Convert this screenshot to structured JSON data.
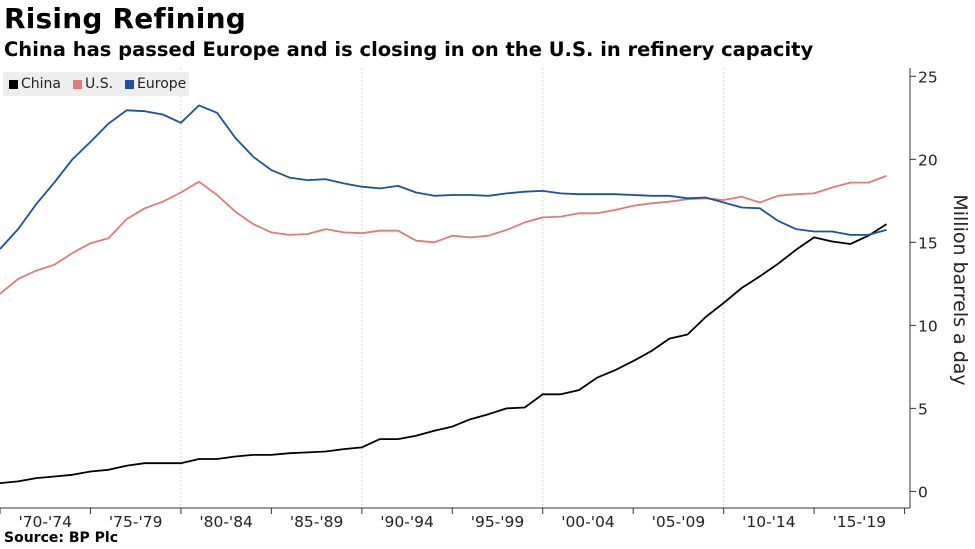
{
  "title": "Rising Refining",
  "subtitle": "China has passed Europe and is closing in on the U.S. in refinery capacity",
  "source": "Source: BP Plc",
  "chart_data": {
    "type": "line",
    "ylabel": "Million barrels a day",
    "ylim": [
      -1,
      25.5
    ],
    "yticks": [
      0,
      5,
      10,
      15,
      20,
      25
    ],
    "xlim": [
      1970,
      2020.3
    ],
    "x_tick_labels": [
      "'70-'74",
      "'75-'79",
      "'80-'84",
      "'85-'89",
      "'90-'94",
      "'95-'99",
      "'00-'04",
      "'05-'09",
      "'10-'14",
      "'15-'19"
    ],
    "grid": "vertical dotted",
    "legend_position": "top-left",
    "x": [
      1970,
      1971,
      1972,
      1973,
      1974,
      1975,
      1976,
      1977,
      1978,
      1979,
      1980,
      1981,
      1982,
      1983,
      1984,
      1985,
      1986,
      1987,
      1988,
      1989,
      1990,
      1991,
      1992,
      1993,
      1994,
      1995,
      1996,
      1997,
      1998,
      1999,
      2000,
      2001,
      2002,
      2003,
      2004,
      2005,
      2006,
      2007,
      2008,
      2009,
      2010,
      2011,
      2012,
      2013,
      2014,
      2015,
      2016,
      2017,
      2018,
      2019
    ],
    "series": [
      {
        "name": "China",
        "color": "#000000",
        "values": [
          0.5,
          0.6,
          0.8,
          0.9,
          1.0,
          1.2,
          1.3,
          1.55,
          1.7,
          1.7,
          1.7,
          1.95,
          1.95,
          2.1,
          2.2,
          2.2,
          2.3,
          2.35,
          2.4,
          2.55,
          2.65,
          3.15,
          3.15,
          3.35,
          3.65,
          3.9,
          4.35,
          4.65,
          5.0,
          5.05,
          5.85,
          5.85,
          6.1,
          6.85,
          7.3,
          7.85,
          8.45,
          9.2,
          9.45,
          10.5,
          11.35,
          12.25,
          12.95,
          13.7,
          14.55,
          15.3,
          15.05,
          14.9,
          15.4,
          16.1
        ]
      },
      {
        "name": "U.S.",
        "color": "#e07b78",
        "values": [
          11.9,
          12.8,
          13.3,
          13.65,
          14.35,
          14.95,
          15.25,
          16.4,
          17.05,
          17.45,
          18.0,
          18.65,
          17.85,
          16.85,
          16.1,
          15.6,
          15.45,
          15.5,
          15.8,
          15.6,
          15.55,
          15.7,
          15.7,
          15.1,
          15.0,
          15.4,
          15.3,
          15.4,
          15.75,
          16.2,
          16.5,
          16.55,
          16.75,
          16.75,
          16.95,
          17.2,
          17.35,
          17.45,
          17.6,
          17.65,
          17.55,
          17.75,
          17.4,
          17.8,
          17.9,
          17.95,
          18.3,
          18.6,
          18.6,
          19.0
        ]
      },
      {
        "name": "Europe",
        "color": "#1f4fa0",
        "values": [
          14.6,
          15.8,
          17.3,
          18.6,
          20.0,
          21.05,
          22.15,
          22.95,
          22.9,
          22.7,
          22.2,
          23.25,
          22.8,
          21.3,
          20.15,
          19.35,
          18.9,
          18.75,
          18.8,
          18.55,
          18.35,
          18.25,
          18.4,
          18.0,
          17.8,
          17.85,
          17.85,
          17.8,
          17.95,
          18.05,
          18.1,
          17.95,
          17.9,
          17.9,
          17.9,
          17.85,
          17.8,
          17.8,
          17.65,
          17.7,
          17.4,
          17.1,
          17.05,
          16.3,
          15.8,
          15.65,
          15.65,
          15.45,
          15.45,
          15.75
        ]
      }
    ]
  },
  "legend": {
    "items": [
      {
        "label": "China",
        "color": "#000000"
      },
      {
        "label": "U.S.",
        "color": "#e07b78"
      },
      {
        "label": "Europe",
        "color": "#1f4fa0"
      }
    ]
  }
}
